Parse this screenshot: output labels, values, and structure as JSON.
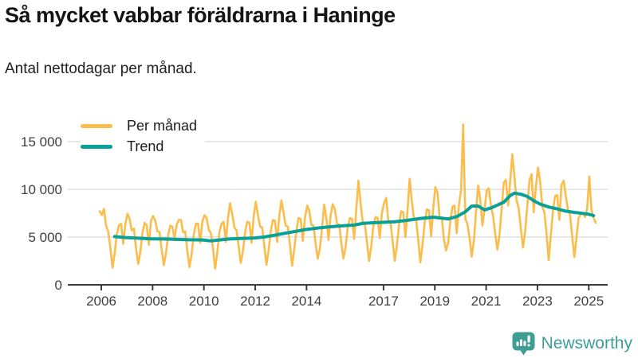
{
  "title": "Så mycket vabbar föräldrarna i Haninge",
  "subtitle": "Antal nettodagar per månad.",
  "footer": {
    "brand": "Newsworthy",
    "brand_color": "#3E9E94",
    "logo_icon": "bar-chart-speech-bubble-icon"
  },
  "colors": {
    "per_month_line": "#FBBD4B",
    "trend_line": "#09A097",
    "grid": "#DBDBDB",
    "axis": "#3C3C3C",
    "tick_label": "#3F3F3F",
    "background": "#FFFFFF"
  },
  "chart_data": {
    "type": "line",
    "title": "Så mycket vabbar föräldrarna i Haninge",
    "subtitle": "Antal nettodagar per månad.",
    "xlabel": "",
    "ylabel": "",
    "grid": "horizontal",
    "legend_position": "top-left",
    "ylim": [
      0,
      17500
    ],
    "x_range_years": [
      2006.0,
      2025.42
    ],
    "y_ticks": [
      0,
      5000,
      10000,
      15000
    ],
    "y_tick_labels": [
      "0",
      "5 000",
      "10 000",
      "15 000"
    ],
    "x_tick_years": [
      2006,
      2008,
      2010,
      2012,
      2014,
      2017,
      2019,
      2021,
      2023,
      2025
    ],
    "x_tick_labels": [
      "2006",
      "2008",
      "2010",
      "2012",
      "2014",
      "2017",
      "2019",
      "2021",
      "2023",
      "2025"
    ],
    "series": [
      {
        "name": "Per månad",
        "color": "#FBBD4B",
        "frequency": "monthly",
        "start": "2006-01",
        "end": "2025-05",
        "values": [
          7700,
          7300,
          7950,
          6200,
          5600,
          3900,
          1800,
          3300,
          5300,
          6200,
          6400,
          4300,
          6400,
          7450,
          6900,
          5700,
          5900,
          3800,
          2200,
          3400,
          5400,
          6500,
          6200,
          4200,
          6700,
          7200,
          6700,
          5600,
          5500,
          3700,
          2050,
          3300,
          5200,
          6200,
          6100,
          4800,
          6300,
          6800,
          6800,
          5500,
          5600,
          3600,
          1850,
          3200,
          5300,
          6400,
          6400,
          4400,
          6600,
          7300,
          7000,
          5800,
          5400,
          3800,
          1700,
          3400,
          5500,
          6400,
          6600,
          4500,
          7000,
          8550,
          7400,
          6000,
          5700,
          4000,
          2300,
          3500,
          5500,
          6600,
          6500,
          4400,
          7100,
          8700,
          7300,
          6100,
          6000,
          4100,
          2100,
          3600,
          5600,
          6800,
          6700,
          4500,
          7200,
          8850,
          7500,
          6200,
          6100,
          4200,
          2000,
          3700,
          5700,
          7000,
          6900,
          4600,
          7000,
          8300,
          7800,
          6300,
          6200,
          4300,
          2750,
          3800,
          5900,
          8400,
          7000,
          4700,
          7200,
          8450,
          7900,
          6400,
          6300,
          4400,
          2750,
          3900,
          6000,
          7000,
          6900,
          4800,
          7800,
          10900,
          8600,
          6600,
          6500,
          4500,
          2500,
          4000,
          6200,
          7100,
          7000,
          4900,
          7500,
          8600,
          9100,
          6700,
          6600,
          4600,
          2500,
          4100,
          6300,
          7700,
          7600,
          5000,
          7900,
          11100,
          8800,
          6900,
          6800,
          4700,
          2350,
          4200,
          6500,
          7900,
          7800,
          5100,
          8000,
          10250,
          9600,
          7000,
          7000,
          4800,
          3600,
          4400,
          6700,
          8200,
          8300,
          5400,
          8300,
          9900,
          16800,
          6900,
          6400,
          4900,
          2950,
          4600,
          7600,
          10400,
          9000,
          6200,
          7900,
          9900,
          10100,
          8300,
          7200,
          5300,
          3700,
          5200,
          8000,
          10700,
          11000,
          8300,
          10900,
          13700,
          11300,
          8800,
          8000,
          5800,
          3900,
          5600,
          8300,
          10900,
          11600,
          7600,
          10200,
          12300,
          10800,
          8200,
          7600,
          5400,
          2600,
          5200,
          7800,
          9300,
          9400,
          6800,
          10500,
          10900,
          9300,
          7900,
          7300,
          5100,
          2900,
          5000,
          7000,
          7400,
          7500,
          7100,
          8000,
          11350,
          7900,
          7000,
          6500
        ]
      },
      {
        "name": "Trend",
        "color": "#09A097",
        "frequency": "smoothed",
        "points": [
          [
            2006.58,
            5050
          ],
          [
            2007.0,
            4950
          ],
          [
            2007.5,
            4880
          ],
          [
            2008.0,
            4820
          ],
          [
            2008.5,
            4800
          ],
          [
            2009.0,
            4760
          ],
          [
            2009.5,
            4720
          ],
          [
            2010.0,
            4700
          ],
          [
            2010.33,
            4600
          ],
          [
            2010.67,
            4700
          ],
          [
            2011.0,
            4790
          ],
          [
            2011.5,
            4850
          ],
          [
            2012.0,
            4900
          ],
          [
            2012.42,
            5010
          ],
          [
            2012.83,
            5200
          ],
          [
            2013.25,
            5420
          ],
          [
            2013.67,
            5620
          ],
          [
            2014.0,
            5780
          ],
          [
            2014.5,
            5950
          ],
          [
            2015.0,
            6080
          ],
          [
            2015.5,
            6180
          ],
          [
            2015.92,
            6260
          ],
          [
            2016.25,
            6430
          ],
          [
            2016.67,
            6500
          ],
          [
            2017.0,
            6540
          ],
          [
            2017.5,
            6610
          ],
          [
            2018.0,
            6760
          ],
          [
            2018.5,
            6950
          ],
          [
            2019.0,
            7080
          ],
          [
            2019.25,
            7010
          ],
          [
            2019.58,
            6900
          ],
          [
            2019.92,
            7150
          ],
          [
            2020.25,
            7650
          ],
          [
            2020.5,
            8250
          ],
          [
            2020.75,
            8250
          ],
          [
            2021.0,
            7850
          ],
          [
            2021.25,
            8050
          ],
          [
            2021.5,
            8350
          ],
          [
            2021.75,
            8650
          ],
          [
            2022.0,
            9350
          ],
          [
            2022.17,
            9600
          ],
          [
            2022.42,
            9480
          ],
          [
            2022.67,
            9250
          ],
          [
            2022.92,
            8800
          ],
          [
            2023.17,
            8450
          ],
          [
            2023.5,
            8150
          ],
          [
            2023.83,
            7950
          ],
          [
            2024.17,
            7720
          ],
          [
            2024.5,
            7580
          ],
          [
            2024.83,
            7480
          ],
          [
            2025.08,
            7380
          ],
          [
            2025.25,
            7250
          ]
        ]
      }
    ]
  }
}
